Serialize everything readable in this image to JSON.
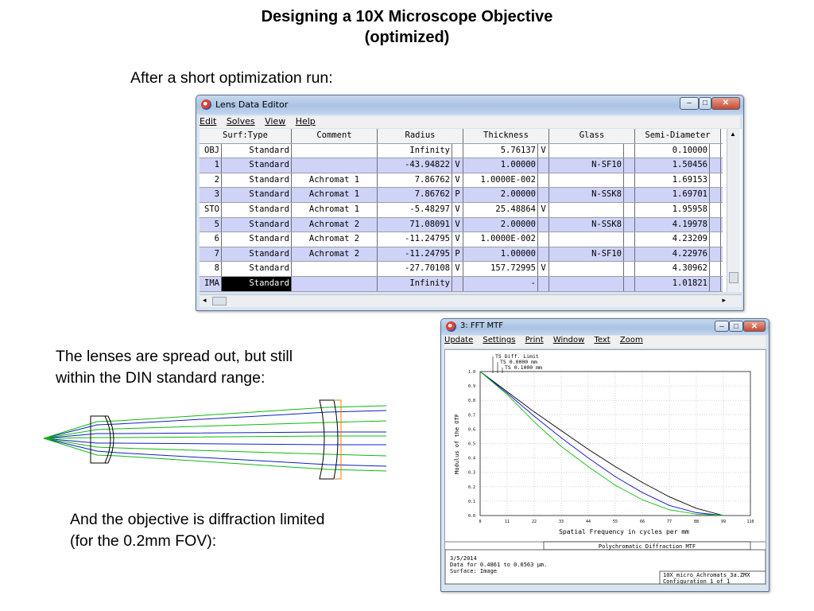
{
  "slide": {
    "title_line1": "Designing a 10X Microscope Objective",
    "title_line2": "(optimized)",
    "caption_top": "After a short optimization run:",
    "caption_mid_line1": "The lenses are spread out, but still",
    "caption_mid_line2": "within the DIN standard range:",
    "caption_bottom_line1": "And the objective is diffraction limited",
    "caption_bottom_line2": "(for the 0.2mm FOV):"
  },
  "lde": {
    "title": "Lens Data Editor",
    "menu": [
      "Edit",
      "Solves",
      "View",
      "Help"
    ],
    "columns": [
      "Surf:Type",
      "Comment",
      "Radius",
      "Thickness",
      "Glass",
      "Semi-Diameter"
    ],
    "rows": [
      {
        "surf": "OBJ",
        "type": "Standard",
        "comment": "",
        "radius": "Infinity",
        "rflag": "",
        "thickness": "5.76137",
        "tflag": "V",
        "glass": "",
        "semi": "0.10000"
      },
      {
        "surf": "1",
        "type": "Standard",
        "comment": "",
        "radius": "-43.94822",
        "rflag": "V",
        "thickness": "1.00000",
        "tflag": "",
        "glass": "N-SF10",
        "semi": "1.50456"
      },
      {
        "surf": "2",
        "type": "Standard",
        "comment": "Achromat 1",
        "radius": "7.86762",
        "rflag": "V",
        "thickness": "1.0000E-002",
        "tflag": "",
        "glass": "",
        "semi": "1.69153"
      },
      {
        "surf": "3",
        "type": "Standard",
        "comment": "Achromat 1",
        "radius": "7.86762",
        "rflag": "P",
        "thickness": "2.00000",
        "tflag": "",
        "glass": "N-SSK8",
        "semi": "1.69701"
      },
      {
        "surf": "STO",
        "type": "Standard",
        "comment": "Achromat 1",
        "radius": "-5.48297",
        "rflag": "V",
        "thickness": "25.48864",
        "tflag": "V",
        "glass": "",
        "semi": "1.95958"
      },
      {
        "surf": "5",
        "type": "Standard",
        "comment": "Achromat 2",
        "radius": "71.08091",
        "rflag": "V",
        "thickness": "2.00000",
        "tflag": "",
        "glass": "N-SSK8",
        "semi": "4.19978"
      },
      {
        "surf": "6",
        "type": "Standard",
        "comment": "Achromat 2",
        "radius": "-11.24795",
        "rflag": "V",
        "thickness": "1.0000E-002",
        "tflag": "",
        "glass": "",
        "semi": "4.23209"
      },
      {
        "surf": "7",
        "type": "Standard",
        "comment": "Achromat 2",
        "radius": "-11.24795",
        "rflag": "P",
        "thickness": "1.00000",
        "tflag": "",
        "glass": "N-SF10",
        "semi": "4.22976"
      },
      {
        "surf": "8",
        "type": "Standard",
        "comment": "",
        "radius": "-27.70108",
        "rflag": "V",
        "thickness": "157.72995",
        "tflag": "V",
        "glass": "",
        "semi": "4.30962"
      },
      {
        "surf": "IMA",
        "type": "Standard",
        "comment": "",
        "radius": "Infinity",
        "rflag": "",
        "thickness": "-",
        "tflag": "",
        "glass": "",
        "semi": "1.01821"
      }
    ]
  },
  "mtf": {
    "title": "3: FFT MTF",
    "menu": [
      "Update",
      "Settings",
      "Print",
      "Window",
      "Text",
      "Zoom"
    ],
    "legend": [
      "TS Diff. Limit",
      "TS 0.0000 mm",
      "TS 0.1000 mm"
    ],
    "ylabel": "Modulus of the OTF",
    "xlabel": "Spatial Frequency in cycles per mm",
    "subtitle": "Polychromatic Diffraction MTF",
    "info_date": "3/5/2014",
    "info_data": "Data for 0.4861 to 0.6563 µm.",
    "info_surface": "Surface: Image",
    "file_name": "10X_micro_Achromats_3a.ZMX",
    "configuration": "Configuration 1 of 1",
    "colors": {
      "diff_limit": "#000000",
      "field_0": "#1010d0",
      "field_1": "#10c010"
    }
  },
  "chart_data": {
    "type": "line",
    "xlabel": "Spatial Frequency in cycles per mm",
    "ylabel": "Modulus of the OTF",
    "title": "Polychromatic Diffraction MTF",
    "xlim": [
      0,
      110
    ],
    "ylim": [
      0,
      1.0
    ],
    "xticks": [
      "0",
      "11",
      "22",
      "33",
      "44",
      "55",
      "66",
      "77",
      "88",
      "99",
      "110"
    ],
    "yticks": [
      "0.0",
      "0.1",
      "0.2",
      "0.3",
      "0.4",
      "0.5",
      "0.6",
      "0.7",
      "0.8",
      "0.9",
      "1.0"
    ],
    "series": [
      {
        "name": "TS Diff. Limit",
        "x": [
          0,
          11,
          22,
          33,
          44,
          55,
          66,
          77,
          88,
          99
        ],
        "y": [
          1.0,
          0.86,
          0.72,
          0.59,
          0.46,
          0.34,
          0.23,
          0.13,
          0.05,
          0.0
        ]
      },
      {
        "name": "TS 0.0000 mm",
        "x": [
          0,
          11,
          22,
          33,
          44,
          55,
          66,
          77,
          88,
          99
        ],
        "y": [
          1.0,
          0.85,
          0.69,
          0.54,
          0.4,
          0.27,
          0.16,
          0.07,
          0.02,
          0.0
        ]
      },
      {
        "name": "TS 0.1000 mm",
        "x": [
          0,
          11,
          22,
          33,
          44,
          55,
          66,
          77,
          88,
          99
        ],
        "y": [
          1.0,
          0.84,
          0.65,
          0.48,
          0.34,
          0.21,
          0.11,
          0.04,
          0.01,
          0.0
        ]
      }
    ]
  }
}
